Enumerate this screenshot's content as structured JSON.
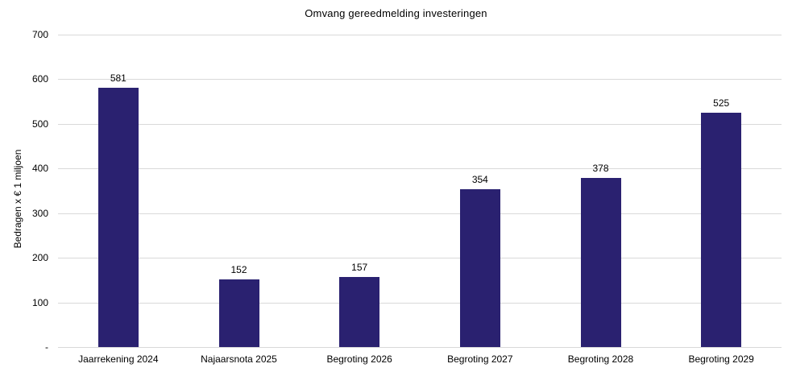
{
  "chart_data": {
    "type": "bar",
    "title": "Omvang gereedmelding investeringen",
    "xlabel": "",
    "ylabel": "Bedragen x € 1 miljoen",
    "categories": [
      "Jaarrekening 2024",
      "Najaarsnota 2025",
      "Begroting 2026",
      "Begroting 2027",
      "Begroting 2028",
      "Begroting 2029"
    ],
    "values": [
      581,
      152,
      157,
      354,
      378,
      525
    ],
    "value_labels": [
      "581",
      "152",
      "157",
      "354",
      "378",
      "525"
    ],
    "ylim": [
      0,
      700
    ],
    "ytick_step": 100,
    "ytick_labels": [
      "-",
      "100",
      "200",
      "300",
      "400",
      "500",
      "600",
      "700"
    ],
    "grid": "horizontal-gridlines",
    "legend_position": "none",
    "bar_color": "#2A2170",
    "gridline_color": "#D9D9D9",
    "text_color": "#000000",
    "background_color": "#FFFFFF"
  }
}
